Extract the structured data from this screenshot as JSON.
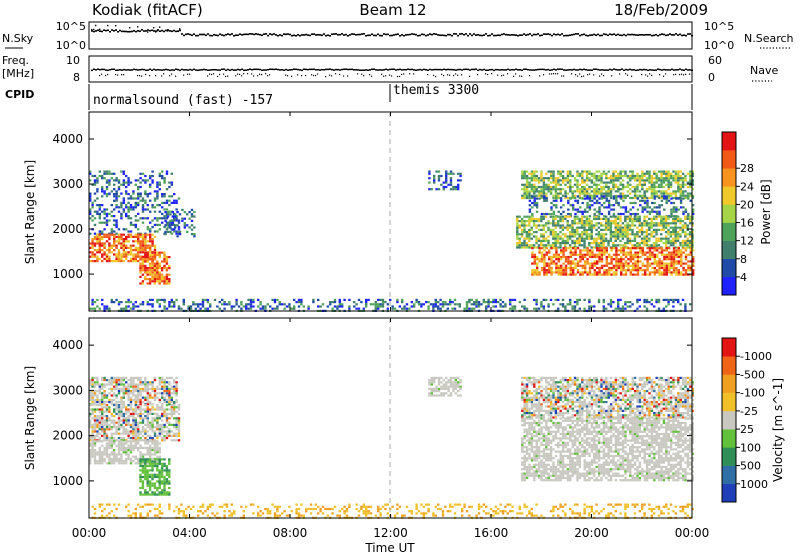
{
  "header": {
    "station": "Kodiak (fitACF)",
    "beam": "Beam 12",
    "date": "18/Feb/2009"
  },
  "nsky_panel": {
    "left_label": "N.Sky",
    "left_ticks": [
      "10^5",
      "10^0"
    ],
    "right_ticks": [
      "10^5",
      "10^0"
    ],
    "right_label": "N.Search"
  },
  "freq_panel": {
    "left_label_line1": "Freq.",
    "left_label_line2": "[MHz]",
    "left_ticks": [
      "10",
      "8"
    ],
    "right_ticks": [
      "60",
      "0"
    ],
    "right_label": "Nave"
  },
  "cpid_panel": {
    "label": "CPID",
    "programs": [
      {
        "name": "normalsound (fast) -157",
        "start_hour": 0
      },
      {
        "name": "themis 3300",
        "start_hour": 12
      }
    ]
  },
  "x_axis": {
    "label": "Time UT",
    "range_hours": [
      0,
      24
    ],
    "ticks": [
      {
        "hour": 0,
        "label": "00:00"
      },
      {
        "hour": 4,
        "label": "04:00"
      },
      {
        "hour": 8,
        "label": "08:00"
      },
      {
        "hour": 12,
        "label": "12:00"
      },
      {
        "hour": 16,
        "label": "16:00"
      },
      {
        "hour": 20,
        "label": "20:00"
      },
      {
        "hour": 24,
        "label": "00:00"
      }
    ]
  },
  "chart_data": [
    {
      "type": "heatmap",
      "title": "Power",
      "xlabel": "Time UT",
      "ylabel": "Slant Range [km]",
      "ylim": [
        180,
        4600
      ],
      "yticks": [
        1000,
        2000,
        3000,
        4000
      ],
      "colorbar": {
        "label": "Power [dB]",
        "ticks": [
          "4",
          "8",
          "12",
          "16",
          "20",
          "24",
          "28"
        ],
        "colors": [
          "#1f22ff",
          "#1f4aa8",
          "#3f7f6c",
          "#4fa25a",
          "#a6d447",
          "#f0c82a",
          "#f7931e",
          "#f25816",
          "#e51414"
        ]
      },
      "regions": [
        {
          "t": [
            0.0,
            3.3
          ],
          "r": [
            2800,
            3300
          ],
          "level": "low"
        },
        {
          "t": [
            0.0,
            3.6
          ],
          "r": [
            1900,
            2800
          ],
          "level": "low"
        },
        {
          "t": [
            3.0,
            4.2
          ],
          "r": [
            1850,
            2450
          ],
          "level": "low"
        },
        {
          "t": [
            0.0,
            2.6
          ],
          "r": [
            1300,
            1900
          ],
          "level": "high"
        },
        {
          "t": [
            2.0,
            3.2
          ],
          "r": [
            800,
            1500
          ],
          "level": "high"
        },
        {
          "t": [
            0.0,
            24.0
          ],
          "r": [
            180,
            450
          ],
          "level": "low"
        },
        {
          "t": [
            17.2,
            24.0
          ],
          "r": [
            2700,
            3300
          ],
          "level": "mid"
        },
        {
          "t": [
            17.5,
            24.0
          ],
          "r": [
            2300,
            2750
          ],
          "level": "low"
        },
        {
          "t": [
            17.0,
            24.0
          ],
          "r": [
            1600,
            2300
          ],
          "level": "mid"
        },
        {
          "t": [
            17.6,
            24.0
          ],
          "r": [
            1000,
            1600
          ],
          "level": "high"
        },
        {
          "t": [
            13.5,
            14.8
          ],
          "r": [
            2900,
            3300
          ],
          "level": "low"
        }
      ]
    },
    {
      "type": "heatmap",
      "title": "Velocity",
      "xlabel": "Time UT",
      "ylabel": "Slant Range [km]",
      "ylim": [
        180,
        4600
      ],
      "yticks": [
        1000,
        2000,
        3000,
        4000
      ],
      "colorbar": {
        "label": "Velocity [m s^-1]",
        "ticks": [
          "1000",
          "500",
          "100",
          "25",
          "-25",
          "-100",
          "-500",
          "-1000"
        ],
        "colors": [
          "#1f3fb8",
          "#2f6fa6",
          "#2f8f56",
          "#62c03a",
          "#c8c8c0",
          "#f0c028",
          "#f0a020",
          "#f06418",
          "#e41414"
        ]
      },
      "regions": [
        {
          "t": [
            0.0,
            3.5
          ],
          "r": [
            2700,
            3300
          ],
          "level": "mixed"
        },
        {
          "t": [
            0.0,
            3.6
          ],
          "r": [
            1900,
            2700
          ],
          "level": "mixed"
        },
        {
          "t": [
            0.0,
            2.8
          ],
          "r": [
            1400,
            1900
          ],
          "level": "ground"
        },
        {
          "t": [
            2.0,
            3.2
          ],
          "r": [
            700,
            1500
          ],
          "level": "toward"
        },
        {
          "t": [
            0.0,
            24.0
          ],
          "r": [
            180,
            500
          ],
          "level": "away"
        },
        {
          "t": [
            17.2,
            24.0
          ],
          "r": [
            2400,
            3300
          ],
          "level": "mixed"
        },
        {
          "t": [
            17.2,
            24.0
          ],
          "r": [
            1000,
            2400
          ],
          "level": "ground"
        },
        {
          "t": [
            13.5,
            14.8
          ],
          "r": [
            2900,
            3300
          ],
          "level": "ground"
        }
      ]
    }
  ]
}
